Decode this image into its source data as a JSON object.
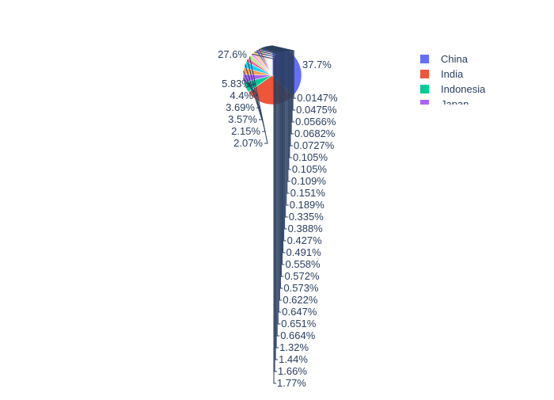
{
  "chart_data": {
    "type": "pie",
    "title": "",
    "legend_position": "top-right",
    "slices": [
      {
        "label": "China",
        "percent": 37.7,
        "text": "37.7%",
        "color": "#636efa"
      },
      {
        "label": "India",
        "percent": 27.6,
        "text": "27.6%",
        "color": "#ef553b"
      },
      {
        "label": "Indonesia",
        "percent": 5.83,
        "text": "5.83%",
        "color": "#00cc96"
      },
      {
        "label": "Japan",
        "percent": 4.4,
        "text": "4.4%",
        "color": "#ab63fa"
      },
      {
        "label": "",
        "percent": 3.69,
        "text": "3.69%",
        "color": "#ffa15a"
      },
      {
        "label": "",
        "percent": 3.57,
        "text": "3.57%",
        "color": "#19d3f3"
      },
      {
        "label": "",
        "percent": 2.15,
        "text": "2.15%",
        "color": "#ff6692"
      },
      {
        "label": "",
        "percent": 2.07,
        "text": "2.07%",
        "color": "#b6e880"
      },
      {
        "label": "",
        "percent": 1.77,
        "text": "1.77%",
        "color": "#ff97ff"
      },
      {
        "label": "",
        "percent": 1.66,
        "text": "1.66%",
        "color": "#fecb52"
      },
      {
        "label": "",
        "percent": 1.44,
        "text": "1.44%",
        "color": "#636efa"
      },
      {
        "label": "",
        "percent": 1.32,
        "text": "1.32%",
        "color": "#ef553b"
      },
      {
        "label": "",
        "percent": 0.664,
        "text": "0.664%",
        "color": "#00cc96"
      },
      {
        "label": "",
        "percent": 0.651,
        "text": "0.651%",
        "color": "#ab63fa"
      },
      {
        "label": "",
        "percent": 0.647,
        "text": "0.647%",
        "color": "#ffa15a"
      },
      {
        "label": "",
        "percent": 0.622,
        "text": "0.622%",
        "color": "#19d3f3"
      },
      {
        "label": "",
        "percent": 0.573,
        "text": "0.573%",
        "color": "#ff6692"
      },
      {
        "label": "",
        "percent": 0.572,
        "text": "0.572%",
        "color": "#b6e880"
      },
      {
        "label": "",
        "percent": 0.558,
        "text": "0.558%",
        "color": "#ff97ff"
      },
      {
        "label": "",
        "percent": 0.491,
        "text": "0.491%",
        "color": "#fecb52"
      },
      {
        "label": "",
        "percent": 0.427,
        "text": "0.427%",
        "color": "#636efa"
      },
      {
        "label": "",
        "percent": 0.388,
        "text": "0.388%",
        "color": "#ef553b"
      },
      {
        "label": "",
        "percent": 0.335,
        "text": "0.335%",
        "color": "#00cc96"
      },
      {
        "label": "",
        "percent": 0.189,
        "text": "0.189%",
        "color": "#ab63fa"
      },
      {
        "label": "",
        "percent": 0.151,
        "text": "0.151%",
        "color": "#ffa15a"
      },
      {
        "label": "",
        "percent": 0.109,
        "text": "0.109%",
        "color": "#19d3f3"
      },
      {
        "label": "",
        "percent": 0.105,
        "text": "0.105%",
        "color": "#ff6692"
      },
      {
        "label": "",
        "percent": 0.105,
        "text": "0.105%",
        "color": "#b6e880"
      },
      {
        "label": "",
        "percent": 0.0727,
        "text": "0.0727%",
        "color": "#ff97ff"
      },
      {
        "label": "",
        "percent": 0.0682,
        "text": "0.0682%",
        "color": "#fecb52"
      },
      {
        "label": "",
        "percent": 0.0566,
        "text": "0.0566%",
        "color": "#636efa"
      },
      {
        "label": "",
        "percent": 0.0475,
        "text": "0.0475%",
        "color": "#ef553b"
      },
      {
        "label": "",
        "percent": 0.0147,
        "text": "0.0147%",
        "color": "#00cc96"
      }
    ],
    "legend": [
      {
        "label": "China",
        "color": "#636efa"
      },
      {
        "label": "India",
        "color": "#ef553b"
      },
      {
        "label": "Indonesia",
        "color": "#00cc96"
      },
      {
        "label": "Japan",
        "color": "#ab63fa"
      }
    ]
  }
}
